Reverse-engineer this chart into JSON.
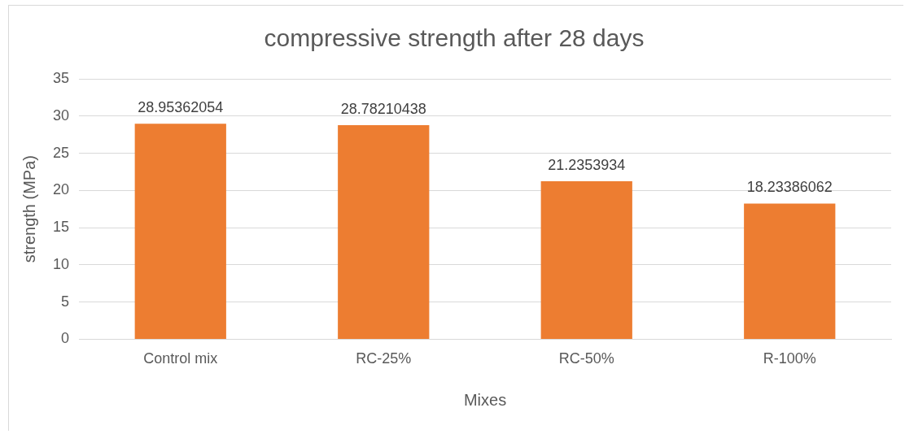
{
  "chart_data": {
    "type": "bar",
    "title": "compressive strength after 28 days",
    "xlabel": "Mixes",
    "ylabel": "strength (MPa)",
    "categories": [
      "Control mix",
      "RC-25%",
      "RC-50%",
      "R-100%"
    ],
    "values": [
      28.95362054,
      28.78210438,
      21.2353934,
      18.23386062
    ],
    "color": "#ed7d31",
    "ylim": [
      0,
      35
    ],
    "yticks": [
      0,
      5,
      10,
      15,
      20,
      25,
      30,
      35
    ],
    "grid": "y",
    "legend": false,
    "data_labels": true
  }
}
